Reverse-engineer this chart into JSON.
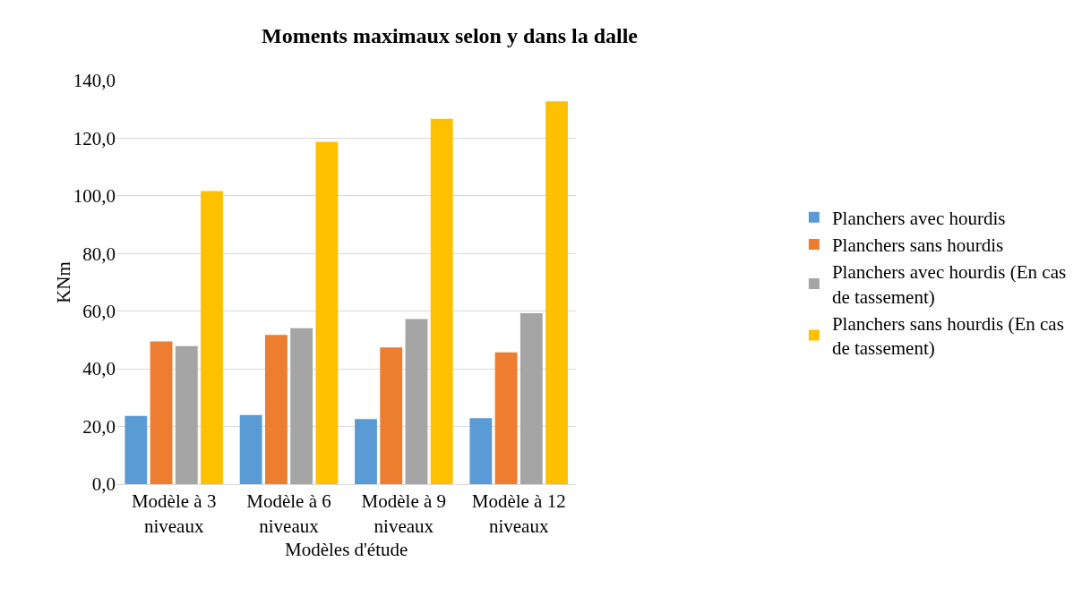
{
  "chart_data": {
    "type": "bar",
    "title": "Moments maximaux selon y dans la dalle",
    "xlabel": "Modèles d'étude",
    "ylabel": "KNm",
    "categories": [
      "Modèle à 3 niveaux",
      "Modèle à 6 niveaux",
      "Modèle à 9 niveaux",
      "Modèle à 12 niveaux"
    ],
    "series": [
      {
        "name": "Planchers avec hourdis",
        "color": "#5b9bd5",
        "values": [
          23.7,
          24.0,
          22.6,
          22.9
        ]
      },
      {
        "name": "Planchers sans hourdis",
        "color": "#ed7d31",
        "values": [
          49.5,
          51.8,
          47.4,
          45.7
        ]
      },
      {
        "name": "Planchers avec hourdis (En cas de tassement)",
        "color": "#a5a5a5",
        "values": [
          47.9,
          54.1,
          57.3,
          59.3
        ]
      },
      {
        "name": "Planchers sans hourdis (En cas de tassement)",
        "color": "#ffc000",
        "values": [
          101.7,
          118.7,
          126.7,
          132.8
        ]
      }
    ],
    "ylim": [
      0,
      140
    ],
    "yticks": [
      {
        "value": 0,
        "label": "0,0"
      },
      {
        "value": 20,
        "label": "20,0"
      },
      {
        "value": 40,
        "label": "40,0"
      },
      {
        "value": 60,
        "label": "60,0"
      },
      {
        "value": 80,
        "label": "80,0"
      },
      {
        "value": 100,
        "label": "100,0"
      },
      {
        "value": 120,
        "label": "120,0"
      },
      {
        "value": 140,
        "label": "140,0"
      }
    ],
    "grid": "y",
    "legend": "right"
  }
}
